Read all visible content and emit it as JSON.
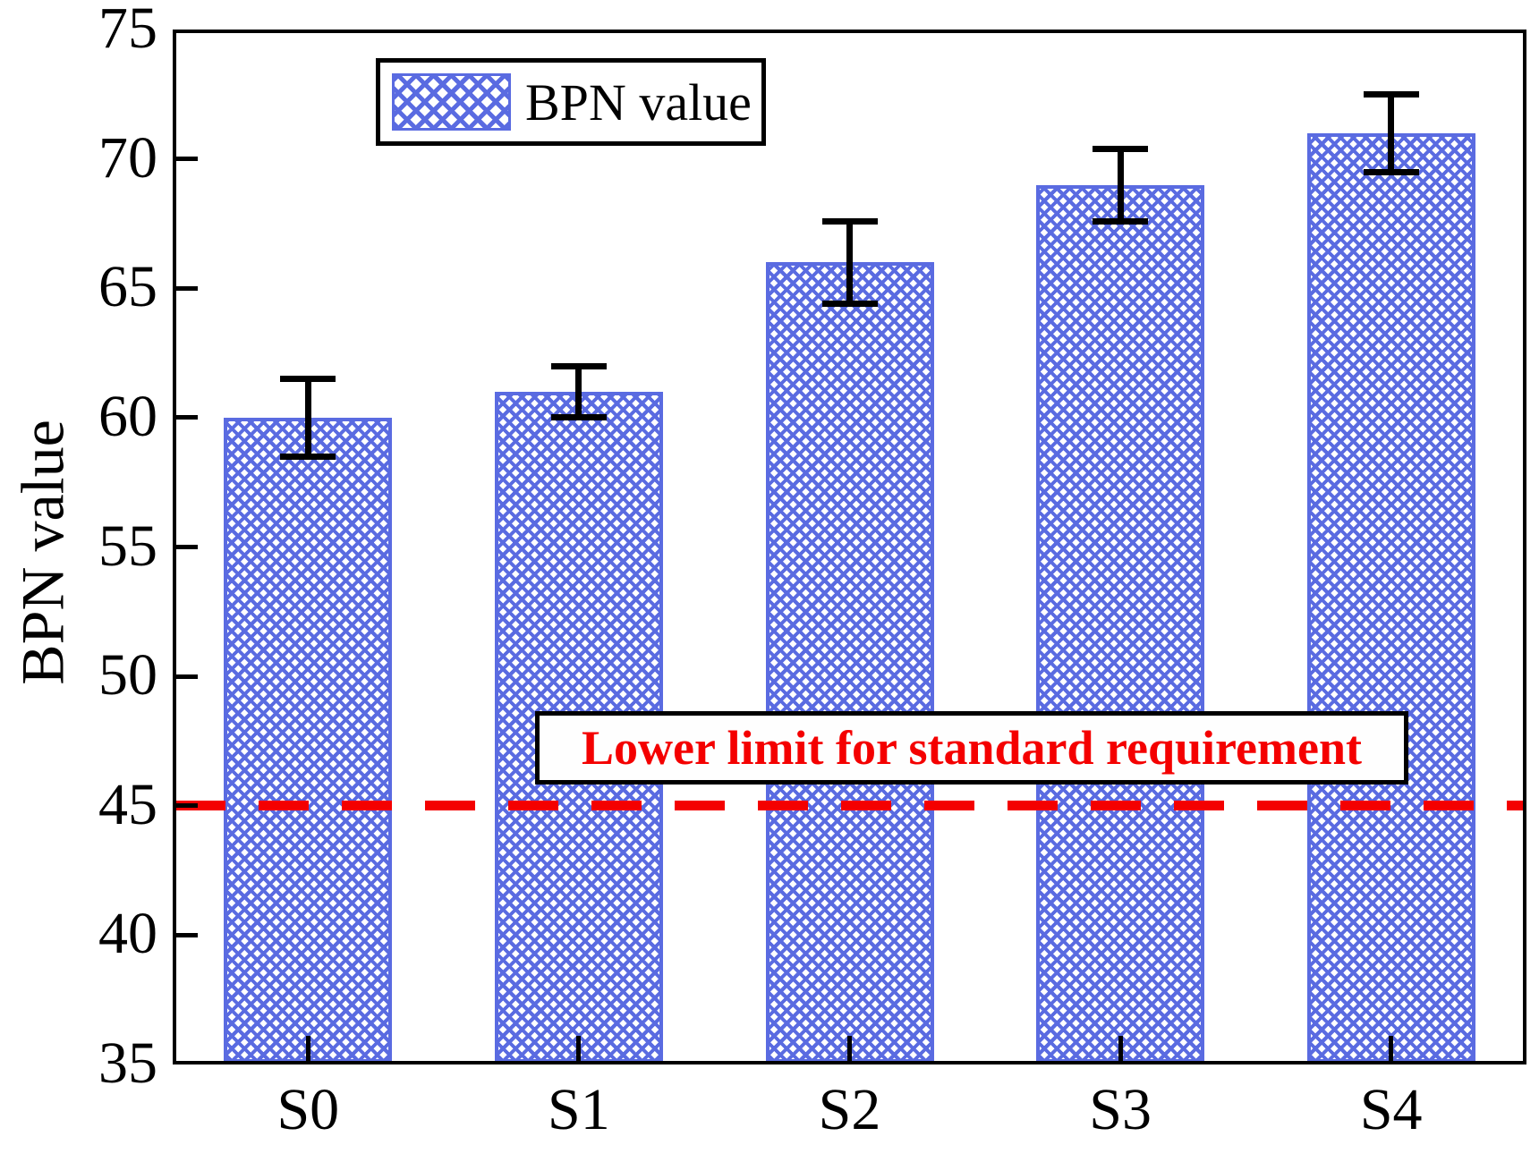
{
  "chart_data": {
    "type": "bar",
    "title": "",
    "xlabel": "",
    "ylabel": "BPN value",
    "categories": [
      "S0",
      "S1",
      "S2",
      "S3",
      "S4"
    ],
    "values": [
      60,
      61,
      66,
      69,
      71
    ],
    "error_bars": [
      1.5,
      1.0,
      1.6,
      1.4,
      1.5
    ],
    "ylim": [
      35,
      75
    ],
    "yticks": [
      35,
      40,
      45,
      50,
      55,
      60,
      65,
      70,
      75
    ],
    "grid": false,
    "legend": {
      "label": "BPN value",
      "position": "top-left-inside"
    },
    "reference_line": {
      "value": 45,
      "label": "Lower limit for standard requirement",
      "style": "dashed",
      "color": "#f40000"
    },
    "bar_color": "#5a6be1",
    "bar_pattern": "diagonal-crosshatch",
    "error_bar_color": "#000000"
  }
}
